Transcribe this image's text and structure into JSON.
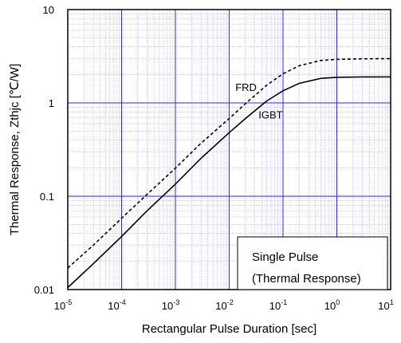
{
  "chart_data": {
    "type": "line",
    "xlabel": "Rectangular Pulse Duration [sec]",
    "ylabel": "Thermal Response, Zthjc [℃/W]",
    "x_scale": "log",
    "y_scale": "log",
    "xlim": [
      1e-05,
      10
    ],
    "ylim": [
      0.01,
      10
    ],
    "x_ticks": [
      {
        "value": 1e-05,
        "base": "10",
        "exp": "-5"
      },
      {
        "value": 0.0001,
        "base": "10",
        "exp": "-4"
      },
      {
        "value": 0.001,
        "base": "10",
        "exp": "-3"
      },
      {
        "value": 0.01,
        "base": "10",
        "exp": "-2"
      },
      {
        "value": 0.1,
        "base": "10",
        "exp": "-1"
      },
      {
        "value": 1,
        "base": "10",
        "exp": "0"
      },
      {
        "value": 10,
        "base": "10",
        "exp": "1"
      }
    ],
    "y_ticks": [
      {
        "value": 0.01,
        "label": "0.01"
      },
      {
        "value": 0.1,
        "label": "0.1"
      },
      {
        "value": 1,
        "label": "1"
      },
      {
        "value": 10,
        "label": "10"
      }
    ],
    "grid": true,
    "colors": {
      "major_grid": "#2a2ae0",
      "minor_grid": "#9a9ae8",
      "frame": "#000000",
      "line": "#000000"
    },
    "series": [
      {
        "name": "FRD",
        "style": "dashed",
        "x": [
          1e-05,
          3e-05,
          0.0001,
          0.0003,
          0.001,
          0.003,
          0.01,
          0.02,
          0.05,
          0.1,
          0.2,
          0.5,
          1,
          3,
          10
        ],
        "y": [
          0.017,
          0.03,
          0.058,
          0.105,
          0.2,
          0.37,
          0.68,
          0.98,
          1.55,
          2.05,
          2.5,
          2.85,
          2.93,
          2.97,
          2.98
        ]
      },
      {
        "name": "IGBT",
        "style": "solid",
        "x": [
          1e-05,
          3e-05,
          0.0001,
          0.0003,
          0.001,
          0.003,
          0.01,
          0.02,
          0.05,
          0.1,
          0.2,
          0.5,
          1,
          3,
          10
        ],
        "y": [
          0.0105,
          0.019,
          0.037,
          0.07,
          0.135,
          0.255,
          0.48,
          0.68,
          1.05,
          1.35,
          1.62,
          1.83,
          1.88,
          1.9,
          1.9
        ]
      }
    ],
    "series_labels": [
      {
        "text": "FRD",
        "x": 0.013,
        "y": 1.35
      },
      {
        "text": "IGBT",
        "x": 0.035,
        "y": 0.68
      }
    ],
    "legend_box": {
      "line1": "Single Pulse",
      "line2": "(Thermal Response)"
    }
  }
}
